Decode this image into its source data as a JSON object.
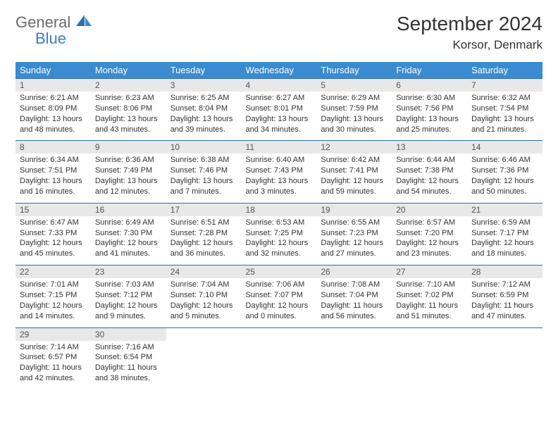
{
  "brand": {
    "line1": "General",
    "line2": "Blue"
  },
  "title": "September 2024",
  "location": "Korsor, Denmark",
  "dayHeaders": [
    "Sunday",
    "Monday",
    "Tuesday",
    "Wednesday",
    "Thursday",
    "Friday",
    "Saturday"
  ],
  "colors": {
    "headerBg": "#3a8bd0",
    "headerText": "#ffffff",
    "dayNumBg": "#e8e8e8",
    "rowBorder": "#2f6ea8",
    "brandGray": "#6a6a6a",
    "brandBlue": "#3a7fc4"
  },
  "weeks": [
    [
      {
        "n": "1",
        "sr": "Sunrise: 6:21 AM",
        "ss": "Sunset: 8:09 PM",
        "d1": "Daylight: 13 hours",
        "d2": "and 48 minutes."
      },
      {
        "n": "2",
        "sr": "Sunrise: 6:23 AM",
        "ss": "Sunset: 8:06 PM",
        "d1": "Daylight: 13 hours",
        "d2": "and 43 minutes."
      },
      {
        "n": "3",
        "sr": "Sunrise: 6:25 AM",
        "ss": "Sunset: 8:04 PM",
        "d1": "Daylight: 13 hours",
        "d2": "and 39 minutes."
      },
      {
        "n": "4",
        "sr": "Sunrise: 6:27 AM",
        "ss": "Sunset: 8:01 PM",
        "d1": "Daylight: 13 hours",
        "d2": "and 34 minutes."
      },
      {
        "n": "5",
        "sr": "Sunrise: 6:29 AM",
        "ss": "Sunset: 7:59 PM",
        "d1": "Daylight: 13 hours",
        "d2": "and 30 minutes."
      },
      {
        "n": "6",
        "sr": "Sunrise: 6:30 AM",
        "ss": "Sunset: 7:56 PM",
        "d1": "Daylight: 13 hours",
        "d2": "and 25 minutes."
      },
      {
        "n": "7",
        "sr": "Sunrise: 6:32 AM",
        "ss": "Sunset: 7:54 PM",
        "d1": "Daylight: 13 hours",
        "d2": "and 21 minutes."
      }
    ],
    [
      {
        "n": "8",
        "sr": "Sunrise: 6:34 AM",
        "ss": "Sunset: 7:51 PM",
        "d1": "Daylight: 13 hours",
        "d2": "and 16 minutes."
      },
      {
        "n": "9",
        "sr": "Sunrise: 6:36 AM",
        "ss": "Sunset: 7:49 PM",
        "d1": "Daylight: 13 hours",
        "d2": "and 12 minutes."
      },
      {
        "n": "10",
        "sr": "Sunrise: 6:38 AM",
        "ss": "Sunset: 7:46 PM",
        "d1": "Daylight: 13 hours",
        "d2": "and 7 minutes."
      },
      {
        "n": "11",
        "sr": "Sunrise: 6:40 AM",
        "ss": "Sunset: 7:43 PM",
        "d1": "Daylight: 13 hours",
        "d2": "and 3 minutes."
      },
      {
        "n": "12",
        "sr": "Sunrise: 6:42 AM",
        "ss": "Sunset: 7:41 PM",
        "d1": "Daylight: 12 hours",
        "d2": "and 59 minutes."
      },
      {
        "n": "13",
        "sr": "Sunrise: 6:44 AM",
        "ss": "Sunset: 7:38 PM",
        "d1": "Daylight: 12 hours",
        "d2": "and 54 minutes."
      },
      {
        "n": "14",
        "sr": "Sunrise: 6:46 AM",
        "ss": "Sunset: 7:36 PM",
        "d1": "Daylight: 12 hours",
        "d2": "and 50 minutes."
      }
    ],
    [
      {
        "n": "15",
        "sr": "Sunrise: 6:47 AM",
        "ss": "Sunset: 7:33 PM",
        "d1": "Daylight: 12 hours",
        "d2": "and 45 minutes."
      },
      {
        "n": "16",
        "sr": "Sunrise: 6:49 AM",
        "ss": "Sunset: 7:30 PM",
        "d1": "Daylight: 12 hours",
        "d2": "and 41 minutes."
      },
      {
        "n": "17",
        "sr": "Sunrise: 6:51 AM",
        "ss": "Sunset: 7:28 PM",
        "d1": "Daylight: 12 hours",
        "d2": "and 36 minutes."
      },
      {
        "n": "18",
        "sr": "Sunrise: 6:53 AM",
        "ss": "Sunset: 7:25 PM",
        "d1": "Daylight: 12 hours",
        "d2": "and 32 minutes."
      },
      {
        "n": "19",
        "sr": "Sunrise: 6:55 AM",
        "ss": "Sunset: 7:23 PM",
        "d1": "Daylight: 12 hours",
        "d2": "and 27 minutes."
      },
      {
        "n": "20",
        "sr": "Sunrise: 6:57 AM",
        "ss": "Sunset: 7:20 PM",
        "d1": "Daylight: 12 hours",
        "d2": "and 23 minutes."
      },
      {
        "n": "21",
        "sr": "Sunrise: 6:59 AM",
        "ss": "Sunset: 7:17 PM",
        "d1": "Daylight: 12 hours",
        "d2": "and 18 minutes."
      }
    ],
    [
      {
        "n": "22",
        "sr": "Sunrise: 7:01 AM",
        "ss": "Sunset: 7:15 PM",
        "d1": "Daylight: 12 hours",
        "d2": "and 14 minutes."
      },
      {
        "n": "23",
        "sr": "Sunrise: 7:03 AM",
        "ss": "Sunset: 7:12 PM",
        "d1": "Daylight: 12 hours",
        "d2": "and 9 minutes."
      },
      {
        "n": "24",
        "sr": "Sunrise: 7:04 AM",
        "ss": "Sunset: 7:10 PM",
        "d1": "Daylight: 12 hours",
        "d2": "and 5 minutes."
      },
      {
        "n": "25",
        "sr": "Sunrise: 7:06 AM",
        "ss": "Sunset: 7:07 PM",
        "d1": "Daylight: 12 hours",
        "d2": "and 0 minutes."
      },
      {
        "n": "26",
        "sr": "Sunrise: 7:08 AM",
        "ss": "Sunset: 7:04 PM",
        "d1": "Daylight: 11 hours",
        "d2": "and 56 minutes."
      },
      {
        "n": "27",
        "sr": "Sunrise: 7:10 AM",
        "ss": "Sunset: 7:02 PM",
        "d1": "Daylight: 11 hours",
        "d2": "and 51 minutes."
      },
      {
        "n": "28",
        "sr": "Sunrise: 7:12 AM",
        "ss": "Sunset: 6:59 PM",
        "d1": "Daylight: 11 hours",
        "d2": "and 47 minutes."
      }
    ],
    [
      {
        "n": "29",
        "sr": "Sunrise: 7:14 AM",
        "ss": "Sunset: 6:57 PM",
        "d1": "Daylight: 11 hours",
        "d2": "and 42 minutes."
      },
      {
        "n": "30",
        "sr": "Sunrise: 7:16 AM",
        "ss": "Sunset: 6:54 PM",
        "d1": "Daylight: 11 hours",
        "d2": "and 38 minutes."
      },
      {
        "empty": true
      },
      {
        "empty": true
      },
      {
        "empty": true
      },
      {
        "empty": true
      },
      {
        "empty": true
      }
    ]
  ]
}
